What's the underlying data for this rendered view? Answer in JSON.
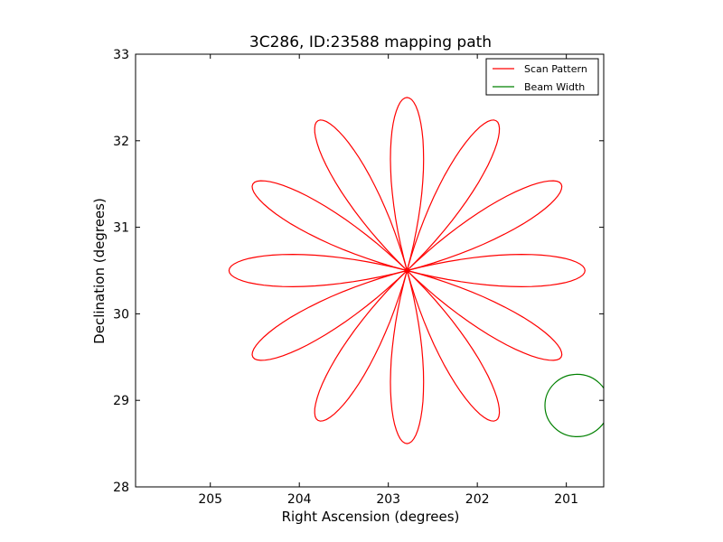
{
  "chart_data": {
    "type": "line",
    "title": "3C286, ID:23588 mapping path",
    "xlabel": "Right Ascension (degrees)",
    "ylabel": "Declination (degrees)",
    "xlim": [
      205.84,
      200.58
    ],
    "ylim": [
      28,
      33
    ],
    "x_ticks": [
      205,
      204,
      203,
      202,
      201
    ],
    "y_ticks": [
      28,
      29,
      30,
      31,
      32,
      33
    ],
    "x_tick_labels": [
      "205",
      "204",
      "203",
      "202",
      "201"
    ],
    "y_tick_labels": [
      "28",
      "29",
      "30",
      "31",
      "32",
      "33"
    ],
    "grid": false,
    "legend": {
      "location": "top-right"
    },
    "series": [
      {
        "name": "Scan Pattern",
        "color": "#ff0000",
        "shape": "rose",
        "petals": 12,
        "center": [
          202.79,
          30.5
        ],
        "petal_length_deg": 2.0,
        "petal_axes_deg": [
          0,
          30,
          60,
          90,
          120,
          150,
          180,
          210,
          240,
          270,
          300,
          330
        ]
      },
      {
        "name": "Beam Width",
        "color": "#008000",
        "shape": "circle",
        "center": [
          200.88,
          28.94
        ],
        "radius_deg": 0.36
      }
    ]
  }
}
